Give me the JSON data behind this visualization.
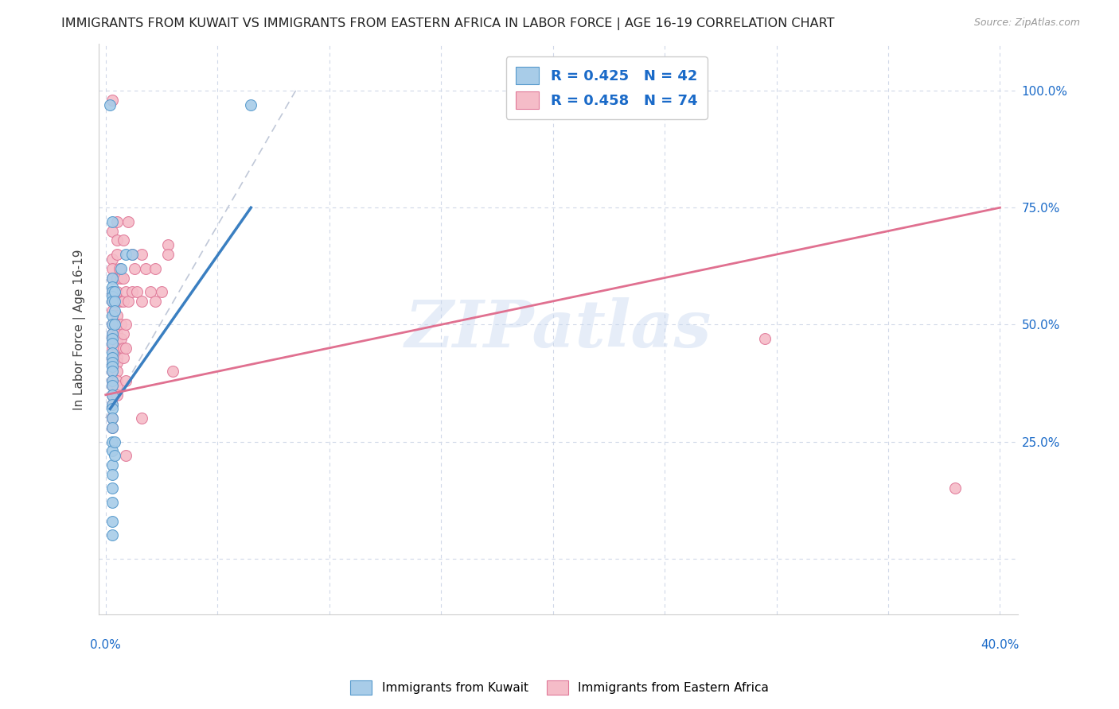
{
  "title": "IMMIGRANTS FROM KUWAIT VS IMMIGRANTS FROM EASTERN AFRICA IN LABOR FORCE | AGE 16-19 CORRELATION CHART",
  "source": "Source: ZipAtlas.com",
  "ylabel": "In Labor Force | Age 16-19",
  "x_ticks": [
    0.0,
    0.05,
    0.1,
    0.15,
    0.2,
    0.25,
    0.3,
    0.35,
    0.4
  ],
  "y_ticks": [
    0.0,
    0.25,
    0.5,
    0.75,
    1.0
  ],
  "y_tick_labels_right": [
    "",
    "25.0%",
    "50.0%",
    "75.0%",
    "100.0%"
  ],
  "xlim": [
    -0.003,
    0.408
  ],
  "ylim": [
    -0.12,
    1.1
  ],
  "r_kuwait": 0.425,
  "n_kuwait": 42,
  "r_eastern_africa": 0.458,
  "n_eastern_africa": 74,
  "color_kuwait_fill": "#a8cce8",
  "color_kuwait_edge": "#5599cc",
  "color_eastern_africa_fill": "#f5bcc8",
  "color_eastern_africa_edge": "#e07898",
  "color_kuwait_line": "#3a7fc1",
  "color_eastern_africa_line": "#e07090",
  "color_dashed_line": "#c0c8d8",
  "watermark": "ZIPatlas",
  "legend_r_color": "#1a6ac8",
  "title_fontsize": 11.5,
  "source_fontsize": 9,
  "marker_size": 100,
  "kuwait_scatter": [
    [
      0.002,
      0.97
    ],
    [
      0.003,
      0.72
    ],
    [
      0.003,
      0.6
    ],
    [
      0.003,
      0.58
    ],
    [
      0.003,
      0.57
    ],
    [
      0.003,
      0.56
    ],
    [
      0.003,
      0.55
    ],
    [
      0.003,
      0.52
    ],
    [
      0.003,
      0.5
    ],
    [
      0.003,
      0.48
    ],
    [
      0.003,
      0.47
    ],
    [
      0.003,
      0.46
    ],
    [
      0.003,
      0.44
    ],
    [
      0.003,
      0.43
    ],
    [
      0.003,
      0.42
    ],
    [
      0.003,
      0.41
    ],
    [
      0.003,
      0.4
    ],
    [
      0.003,
      0.38
    ],
    [
      0.003,
      0.37
    ],
    [
      0.003,
      0.35
    ],
    [
      0.003,
      0.33
    ],
    [
      0.003,
      0.32
    ],
    [
      0.003,
      0.3
    ],
    [
      0.003,
      0.28
    ],
    [
      0.003,
      0.25
    ],
    [
      0.003,
      0.23
    ],
    [
      0.003,
      0.2
    ],
    [
      0.003,
      0.18
    ],
    [
      0.003,
      0.15
    ],
    [
      0.003,
      0.12
    ],
    [
      0.003,
      0.08
    ],
    [
      0.003,
      0.05
    ],
    [
      0.004,
      0.57
    ],
    [
      0.004,
      0.55
    ],
    [
      0.004,
      0.53
    ],
    [
      0.004,
      0.5
    ],
    [
      0.004,
      0.25
    ],
    [
      0.004,
      0.22
    ],
    [
      0.007,
      0.62
    ],
    [
      0.009,
      0.65
    ],
    [
      0.012,
      0.65
    ],
    [
      0.065,
      0.97
    ]
  ],
  "eastern_africa_scatter": [
    [
      0.003,
      0.98
    ],
    [
      0.003,
      0.7
    ],
    [
      0.003,
      0.64
    ],
    [
      0.003,
      0.62
    ],
    [
      0.003,
      0.6
    ],
    [
      0.003,
      0.57
    ],
    [
      0.003,
      0.55
    ],
    [
      0.003,
      0.53
    ],
    [
      0.003,
      0.5
    ],
    [
      0.003,
      0.48
    ],
    [
      0.003,
      0.47
    ],
    [
      0.003,
      0.46
    ],
    [
      0.003,
      0.45
    ],
    [
      0.003,
      0.43
    ],
    [
      0.003,
      0.42
    ],
    [
      0.003,
      0.4
    ],
    [
      0.003,
      0.38
    ],
    [
      0.003,
      0.37
    ],
    [
      0.003,
      0.35
    ],
    [
      0.003,
      0.33
    ],
    [
      0.003,
      0.3
    ],
    [
      0.003,
      0.28
    ],
    [
      0.005,
      0.72
    ],
    [
      0.005,
      0.68
    ],
    [
      0.005,
      0.65
    ],
    [
      0.005,
      0.6
    ],
    [
      0.005,
      0.57
    ],
    [
      0.005,
      0.55
    ],
    [
      0.005,
      0.52
    ],
    [
      0.005,
      0.5
    ],
    [
      0.005,
      0.48
    ],
    [
      0.005,
      0.47
    ],
    [
      0.005,
      0.45
    ],
    [
      0.005,
      0.43
    ],
    [
      0.005,
      0.42
    ],
    [
      0.005,
      0.4
    ],
    [
      0.005,
      0.38
    ],
    [
      0.005,
      0.37
    ],
    [
      0.005,
      0.35
    ],
    [
      0.006,
      0.62
    ],
    [
      0.007,
      0.6
    ],
    [
      0.007,
      0.55
    ],
    [
      0.007,
      0.5
    ],
    [
      0.007,
      0.47
    ],
    [
      0.008,
      0.68
    ],
    [
      0.008,
      0.6
    ],
    [
      0.008,
      0.55
    ],
    [
      0.008,
      0.48
    ],
    [
      0.008,
      0.45
    ],
    [
      0.008,
      0.43
    ],
    [
      0.009,
      0.57
    ],
    [
      0.009,
      0.5
    ],
    [
      0.009,
      0.45
    ],
    [
      0.009,
      0.38
    ],
    [
      0.009,
      0.22
    ],
    [
      0.01,
      0.72
    ],
    [
      0.01,
      0.55
    ],
    [
      0.012,
      0.65
    ],
    [
      0.012,
      0.57
    ],
    [
      0.013,
      0.62
    ],
    [
      0.014,
      0.57
    ],
    [
      0.016,
      0.65
    ],
    [
      0.016,
      0.55
    ],
    [
      0.016,
      0.3
    ],
    [
      0.018,
      0.62
    ],
    [
      0.02,
      0.57
    ],
    [
      0.022,
      0.62
    ],
    [
      0.022,
      0.55
    ],
    [
      0.025,
      0.57
    ],
    [
      0.028,
      0.67
    ],
    [
      0.028,
      0.65
    ],
    [
      0.03,
      0.4
    ],
    [
      0.295,
      0.47
    ],
    [
      0.38,
      0.15
    ]
  ],
  "kuwait_line_x": [
    0.002,
    0.065
  ],
  "kuwait_line_y": [
    0.32,
    0.75
  ],
  "ea_line_x": [
    0.0,
    0.4
  ],
  "ea_line_y": [
    0.35,
    0.75
  ]
}
